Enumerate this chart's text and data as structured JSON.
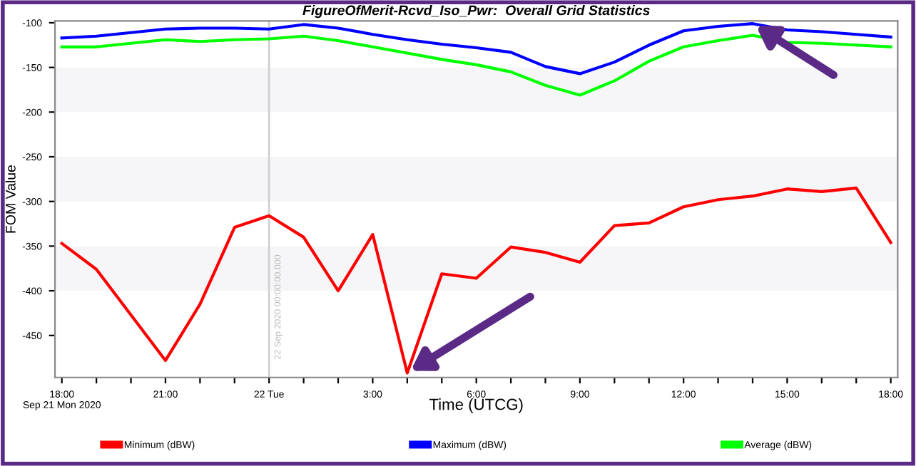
{
  "chart_data": {
    "type": "line",
    "title": "FigureOfMerit-Rcvd_Iso_Pwr:  Overall Grid Statistics",
    "xlabel": "Time (UTCG)",
    "ylabel": "FOM Value",
    "x": [
      "2020-09-21T18:00",
      "2020-09-21T19:00",
      "2020-09-21T20:00",
      "2020-09-21T21:00",
      "2020-09-21T22:00",
      "2020-09-21T23:00",
      "2020-09-22T00:00",
      "2020-09-22T01:00",
      "2020-09-22T02:00",
      "2020-09-22T03:00",
      "2020-09-22T04:00",
      "2020-09-22T05:00",
      "2020-09-22T06:00",
      "2020-09-22T07:00",
      "2020-09-22T08:00",
      "2020-09-22T09:00",
      "2020-09-22T10:00",
      "2020-09-22T11:00",
      "2020-09-22T12:00",
      "2020-09-22T13:00",
      "2020-09-22T14:00",
      "2020-09-22T15:00",
      "2020-09-22T16:00",
      "2020-09-22T17:00",
      "2020-09-22T18:00"
    ],
    "series": [
      {
        "name": "Minimum (dBW)",
        "color": "#ff0000",
        "values": [
          -347,
          -376,
          -427,
          -478,
          -415,
          -329,
          -316,
          -340,
          -400,
          -337,
          -492,
          -381,
          -386,
          -351,
          -357,
          -368,
          -327,
          -324,
          -306,
          -298,
          -294,
          -286,
          -289,
          -285,
          -346
        ]
      },
      {
        "name": "Maximum (dBW)",
        "color": "#0000ff",
        "values": [
          -117,
          -115,
          -111,
          -107,
          -106,
          -106,
          -107,
          -102,
          -106,
          -113,
          -119,
          -124,
          -128,
          -133,
          -149,
          -157,
          -144,
          -125,
          -109,
          -104,
          -101,
          -108,
          -110,
          -113,
          -116
        ]
      },
      {
        "name": "Average (dBW)",
        "color": "#00ff00",
        "values": [
          -127,
          -127,
          -123,
          -119,
          -121,
          -119,
          -118,
          -115,
          -120,
          -127,
          -134,
          -141,
          -147,
          -155,
          -170,
          -181,
          -165,
          -143,
          -127,
          -120,
          -114,
          -122,
          -123,
          -125,
          -127
        ]
      }
    ],
    "xlim": [
      "2020-09-21T17:48",
      "2020-09-22T18:12"
    ],
    "ylim": [
      -497,
      -98
    ],
    "xticks": [
      {
        "value": "2020-09-21T18:00",
        "label": "18:00\nSep 21 Mon 2020"
      },
      {
        "value": "2020-09-21T19:00",
        "label": null
      },
      {
        "value": "2020-09-21T20:00",
        "label": null
      },
      {
        "value": "2020-09-21T21:00",
        "label": "21:00"
      },
      {
        "value": "2020-09-21T22:00",
        "label": null
      },
      {
        "value": "2020-09-21T23:00",
        "label": null
      },
      {
        "value": "2020-09-22T00:00",
        "label": "22 Tue"
      },
      {
        "value": "2020-09-22T01:00",
        "label": null
      },
      {
        "value": "2020-09-22T02:00",
        "label": null
      },
      {
        "value": "2020-09-22T03:00",
        "label": "3:00"
      },
      {
        "value": "2020-09-22T04:00",
        "label": null
      },
      {
        "value": "2020-09-22T05:00",
        "label": null
      },
      {
        "value": "2020-09-22T06:00",
        "label": "6:00"
      },
      {
        "value": "2020-09-22T07:00",
        "label": null
      },
      {
        "value": "2020-09-22T08:00",
        "label": null
      },
      {
        "value": "2020-09-22T09:00",
        "label": "9:00"
      },
      {
        "value": "2020-09-22T10:00",
        "label": null
      },
      {
        "value": "2020-09-22T11:00",
        "label": null
      },
      {
        "value": "2020-09-22T12:00",
        "label": "12:00"
      },
      {
        "value": "2020-09-22T13:00",
        "label": null
      },
      {
        "value": "2020-09-22T14:00",
        "label": null
      },
      {
        "value": "2020-09-22T15:00",
        "label": "15:00"
      },
      {
        "value": "2020-09-22T16:00",
        "label": null
      },
      {
        "value": "2020-09-22T17:00",
        "label": null
      },
      {
        "value": "2020-09-22T18:00",
        "label": "18:00"
      }
    ],
    "yticks": [
      -100,
      -150,
      -200,
      -250,
      -300,
      -350,
      -400,
      -450
    ],
    "ref_lines": [
      {
        "axis": "x",
        "value": "2020-09-22T00:00",
        "label": "22 Sep 2020 00:00:00.000",
        "color": "#d0d0d0"
      }
    ],
    "grid": false,
    "legend": "bottom",
    "marker": "none",
    "line_style": "solid"
  }
}
